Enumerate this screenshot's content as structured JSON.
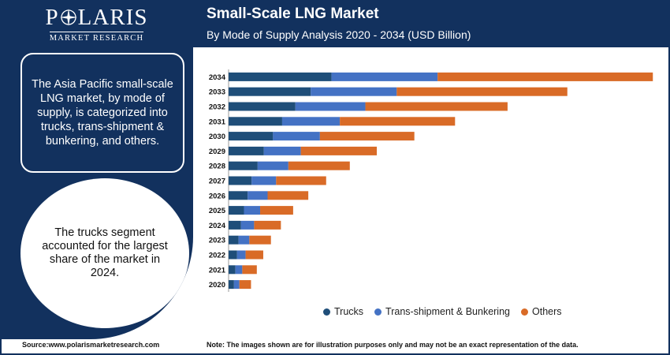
{
  "logo": {
    "name": "POLARIS",
    "tagline": "MARKET RESEARCH"
  },
  "header": {
    "title": "Small-Scale LNG Market",
    "subtitle": "By Mode of Supply Analysis 2020 - 2034 (USD Billion)"
  },
  "info_text": "The Asia Pacific small-scale LNG market, by mode of supply, is categorized into trucks, trans-shipment & bunkering, and others.",
  "highlight_text": "The trucks segment accounted for the largest share of the market in 2024.",
  "footer": {
    "source": "Source:www.polarismarketresearch.com",
    "note": "Note: The images shown are for illustration purposes only and may not be an exact representation of the data."
  },
  "colors": {
    "navy": "#12315e",
    "trucks": "#1f4e79",
    "trans": "#4472c4",
    "others": "#d96b27"
  },
  "chart_data": {
    "type": "bar",
    "orientation": "horizontal",
    "stacked": true,
    "categories": [
      "2034",
      "2033",
      "2032",
      "2031",
      "2030",
      "2029",
      "2028",
      "2027",
      "2026",
      "2025",
      "2024",
      "2023",
      "2022",
      "2021",
      "2020"
    ],
    "series": [
      {
        "name": "Trucks",
        "color": "#1f4e79",
        "values": [
          4.96,
          3.96,
          3.22,
          2.58,
          2.14,
          1.7,
          1.4,
          1.11,
          0.92,
          0.74,
          0.6,
          0.48,
          0.41,
          0.33,
          0.26
        ]
      },
      {
        "name": "Trans-shipment & Bunkering",
        "color": "#4472c4",
        "values": [
          5.11,
          4.14,
          3.37,
          2.78,
          2.26,
          1.78,
          1.48,
          1.18,
          0.96,
          0.78,
          0.63,
          0.52,
          0.41,
          0.33,
          0.26
        ]
      },
      {
        "name": "Others",
        "color": "#d96b27",
        "values": [
          10.37,
          8.22,
          6.85,
          5.55,
          4.55,
          3.66,
          2.96,
          2.41,
          1.96,
          1.59,
          1.29,
          1.04,
          0.85,
          0.7,
          0.56
        ]
      }
    ],
    "xlim": [
      0,
      21
    ],
    "grid": false,
    "legend": "bottom"
  }
}
